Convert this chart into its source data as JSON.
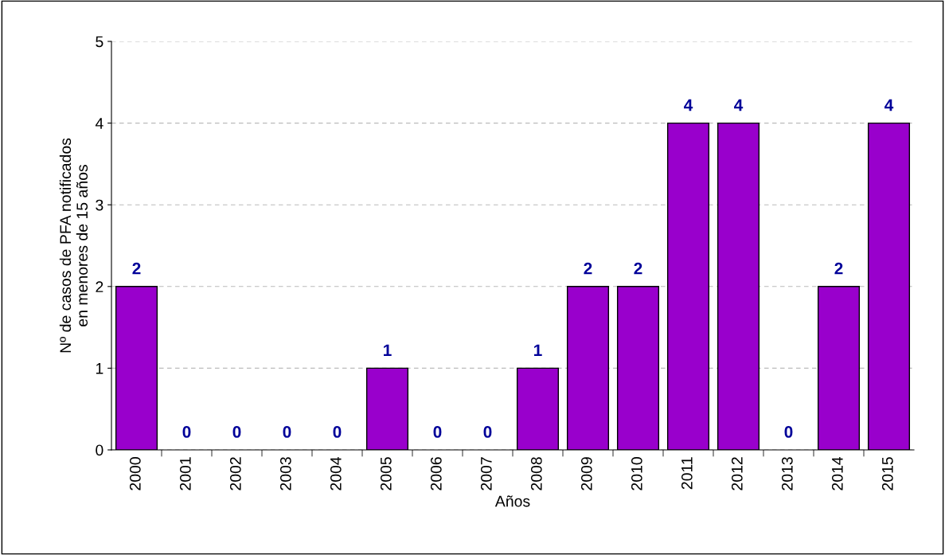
{
  "chart_data": {
    "type": "bar",
    "categories": [
      "2000",
      "2001",
      "2002",
      "2003",
      "2004",
      "2005",
      "2006",
      "2007",
      "2008",
      "2009",
      "2010",
      "2011",
      "2012",
      "2013",
      "2014",
      "2015"
    ],
    "values": [
      2,
      0,
      0,
      0,
      0,
      1,
      0,
      0,
      1,
      2,
      2,
      4,
      4,
      0,
      2,
      4
    ],
    "color": "#9900cc",
    "xlabel": "Años",
    "ylabel": "Nº de casos de PFA notificados\nen menores de 15 años",
    "ylim": [
      0,
      5
    ],
    "yticks": [
      0,
      1,
      2,
      3,
      4,
      5
    ],
    "grid": "y",
    "data_labels": true
  }
}
